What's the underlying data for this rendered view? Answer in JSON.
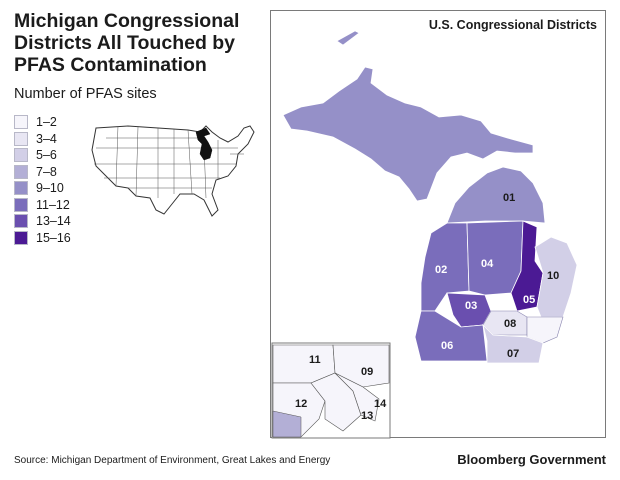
{
  "header": {
    "title": "Michigan Congressional Districts All Touched by PFAS Contamination"
  },
  "legend": {
    "title": "Number of PFAS sites",
    "items": [
      {
        "label": "1–2",
        "color": "#f6f5fb"
      },
      {
        "label": "3–4",
        "color": "#e8e6f3"
      },
      {
        "label": "5–6",
        "color": "#d2cfe7"
      },
      {
        "label": "7–8",
        "color": "#b3afd6"
      },
      {
        "label": "9–10",
        "color": "#9590c8"
      },
      {
        "label": "11–12",
        "color": "#7a6dbb"
      },
      {
        "label": "13–14",
        "color": "#6a4faf"
      },
      {
        "label": "15–16",
        "color": "#4b1a94"
      }
    ]
  },
  "map": {
    "panel_label": "U.S. Congressional Districts",
    "districts": [
      {
        "id": "01",
        "sites": "9–10"
      },
      {
        "id": "02",
        "sites": "11–12"
      },
      {
        "id": "03",
        "sites": "13–14"
      },
      {
        "id": "04",
        "sites": "11–12"
      },
      {
        "id": "05",
        "sites": "15–16"
      },
      {
        "id": "06",
        "sites": "11–12"
      },
      {
        "id": "07",
        "sites": "5–6"
      },
      {
        "id": "08",
        "sites": "3–4"
      },
      {
        "id": "09",
        "sites": "1–2"
      },
      {
        "id": "10",
        "sites": "5–6"
      },
      {
        "id": "11",
        "sites": "1–2"
      },
      {
        "id": "12",
        "sites": "1–2"
      },
      {
        "id": "13",
        "sites": "1–2"
      },
      {
        "id": "14",
        "sites": "1–2"
      }
    ]
  },
  "footer": {
    "source": "Source: Michigan Department of Environment, Great Lakes and Energy",
    "brand": "Bloomberg Government"
  }
}
